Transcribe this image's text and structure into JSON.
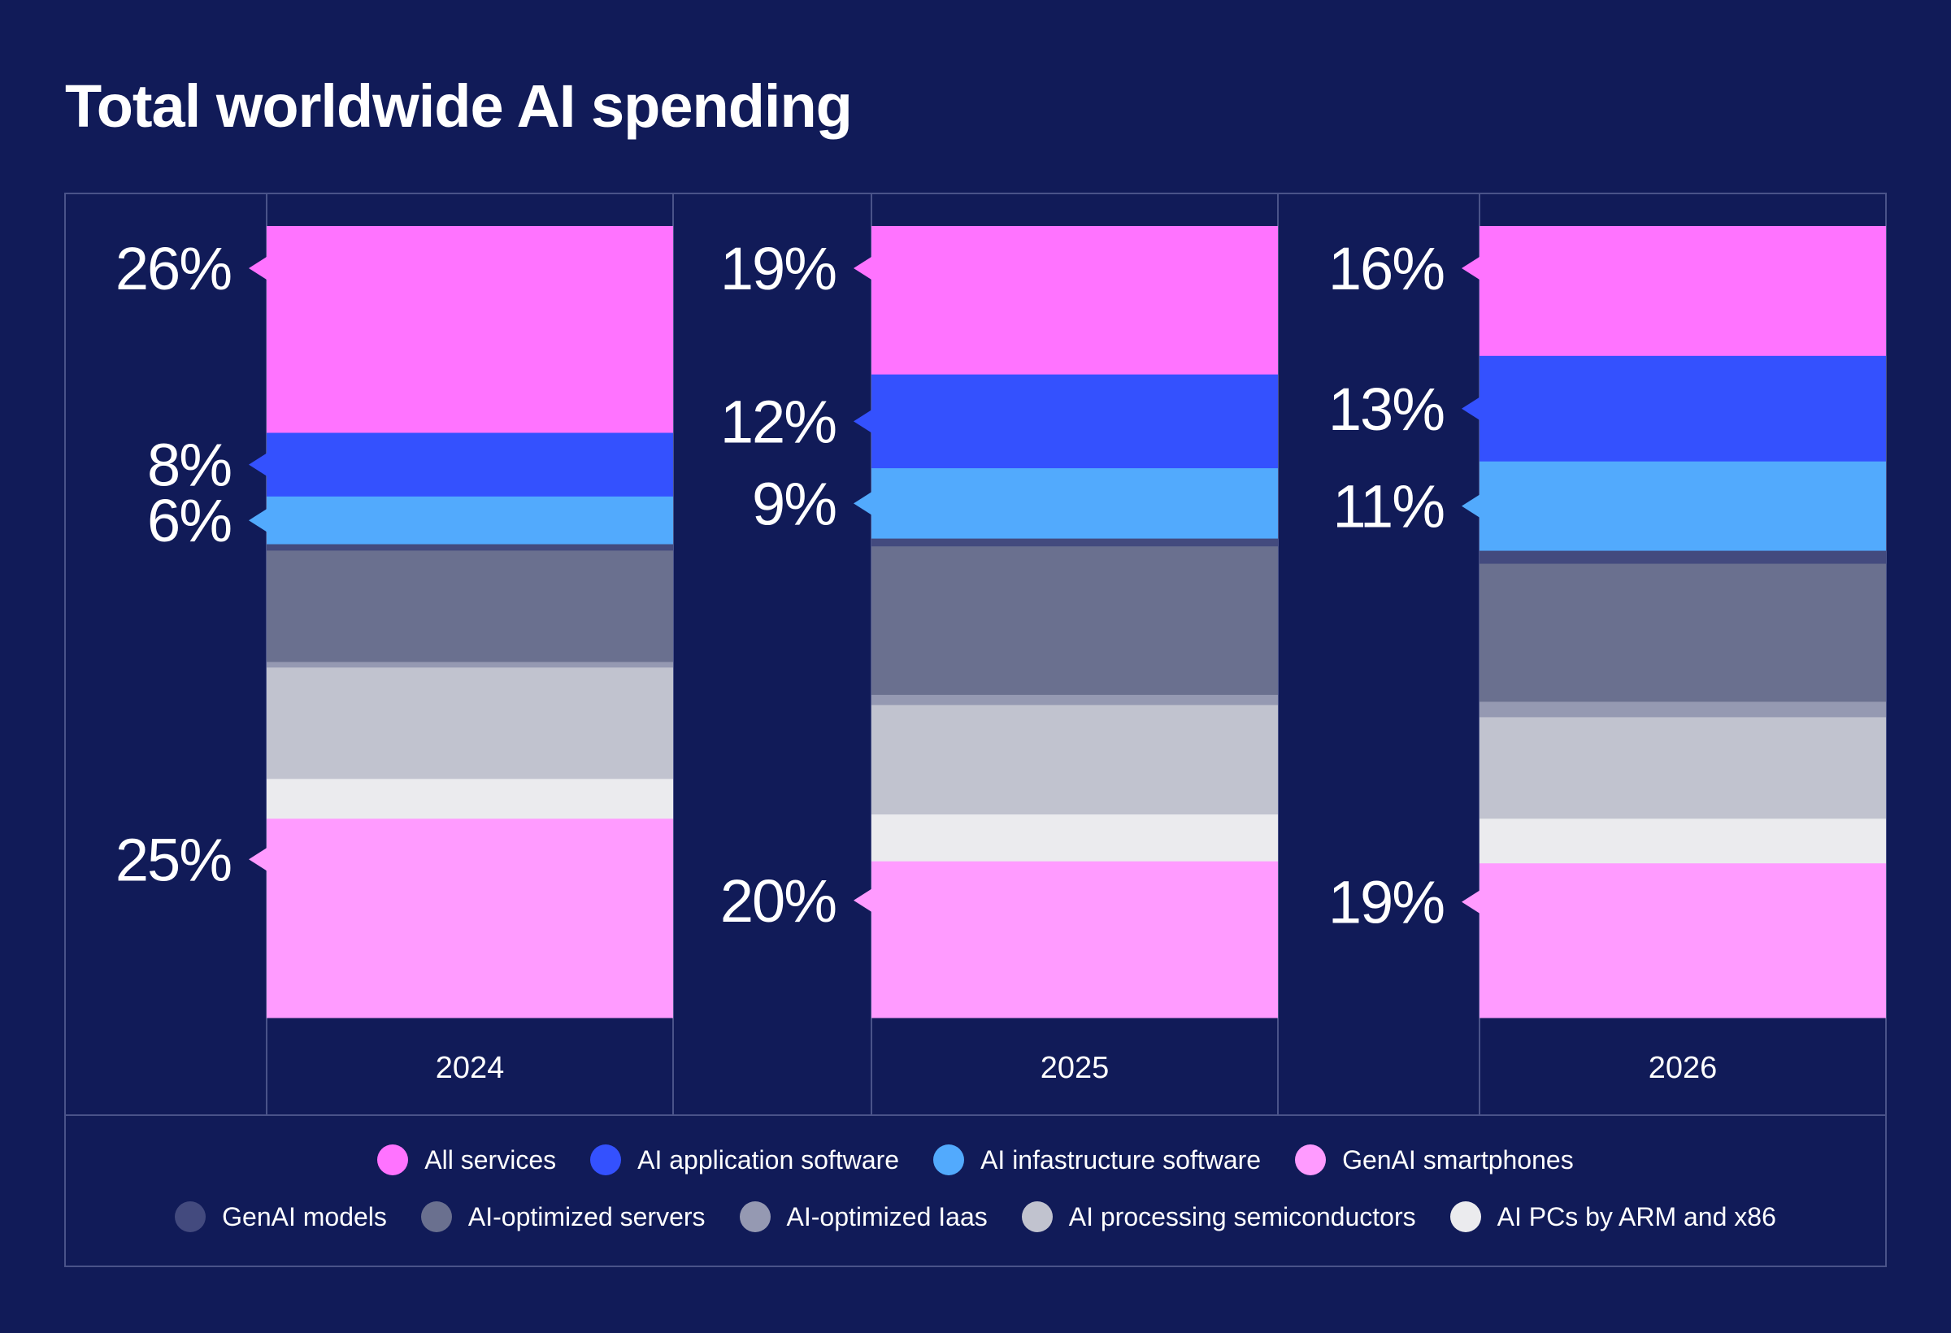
{
  "chart_data": {
    "type": "bar",
    "stacked": true,
    "normalized": true,
    "title": "Total worldwide AI spending",
    "categories": [
      "2024",
      "2025",
      "2026"
    ],
    "series": [
      {
        "name": "All services",
        "color": "#ff73ff",
        "values": [
          26,
          19,
          16
        ]
      },
      {
        "name": "AI application software",
        "color": "#3451fe",
        "values": [
          8,
          12,
          13
        ]
      },
      {
        "name": "AI infastructure software",
        "color": "#52aafd",
        "values": [
          6,
          9,
          11
        ]
      },
      {
        "name": "GenAI models",
        "color": "#434a7e",
        "values": [
          0.8,
          1,
          1.6
        ]
      },
      {
        "name": "AI-optimized servers",
        "color": "#6a708f",
        "values": [
          14,
          19,
          17
        ]
      },
      {
        "name": "AI-optimized Iaas",
        "color": "#9599b2",
        "values": [
          0.7,
          1.3,
          1.9
        ]
      },
      {
        "name": "AI processing semiconductors",
        "color": "#c1c3cf",
        "values": [
          14,
          14,
          12.5
        ]
      },
      {
        "name": "AI PCs by ARM and x86",
        "color": "#ebebee",
        "values": [
          5,
          6,
          5.5
        ]
      },
      {
        "name": "GenAI smartphones",
        "color": "#ff9bff",
        "values": [
          25,
          20,
          19
        ]
      }
    ],
    "data_labels": [
      {
        "category": "2024",
        "labels": [
          {
            "series": "All services",
            "text": "26%"
          },
          {
            "series": "AI application software",
            "text": "8%"
          },
          {
            "series": "AI infastructure software",
            "text": "6%"
          },
          {
            "series": "GenAI smartphones",
            "text": "25%"
          }
        ]
      },
      {
        "category": "2025",
        "labels": [
          {
            "series": "All services",
            "text": "19%"
          },
          {
            "series": "AI application software",
            "text": "12%"
          },
          {
            "series": "AI infastructure software",
            "text": "9%"
          },
          {
            "series": "GenAI smartphones",
            "text": "20%"
          }
        ]
      },
      {
        "category": "2026",
        "labels": [
          {
            "series": "All services",
            "text": "16%"
          },
          {
            "series": "AI application software",
            "text": "13%"
          },
          {
            "series": "AI infastructure software",
            "text": "11%"
          },
          {
            "series": "GenAI smartphones",
            "text": "19%"
          }
        ]
      }
    ],
    "legend": {
      "rows": [
        [
          "All services",
          "AI application software",
          "AI infastructure software",
          "GenAI smartphones"
        ],
        [
          "GenAI models",
          "AI-optimized servers",
          "AI-optimized Iaas",
          "AI processing semiconductors",
          "AI PCs by ARM and x86"
        ]
      ],
      "placement": "bottom"
    },
    "grid": true
  },
  "colors": {
    "background": "#111b58",
    "gridline": "#4a5389"
  }
}
